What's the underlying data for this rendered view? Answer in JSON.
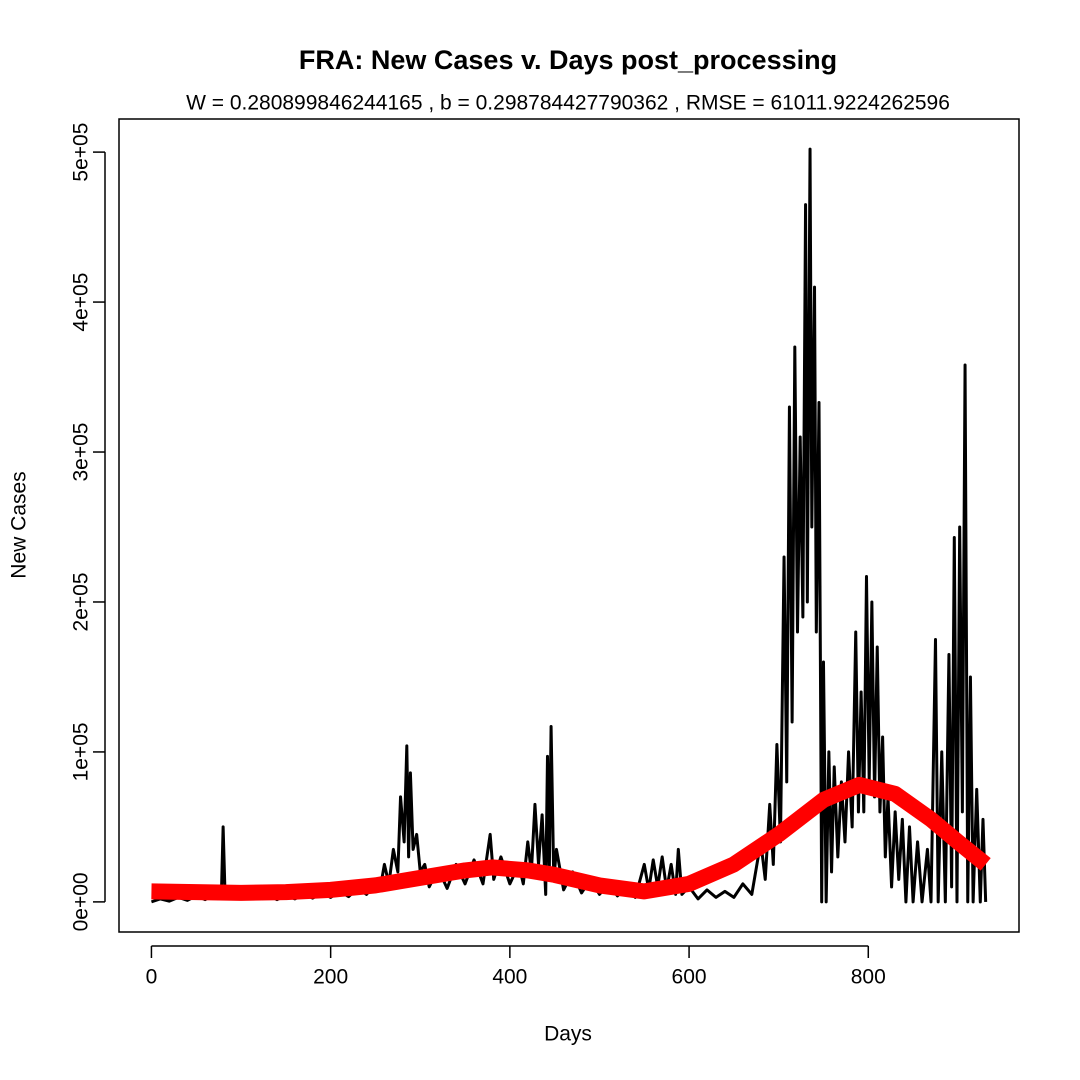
{
  "chart_data": {
    "type": "line",
    "title": "FRA: New Cases v. Days post_processing",
    "subtitle": "W = 0.280899846244165 , b = 0.298784427790362 , RMSE = 61011.9224262596",
    "x_label": "Days",
    "y_label": "New Cases",
    "xlim": [
      -36.2,
      968.2
    ],
    "ylim": [
      -20080,
      522080
    ],
    "xticks": [
      0,
      200,
      400,
      600,
      800
    ],
    "yticks": [
      {
        "value": 0,
        "label": "0e+00"
      },
      {
        "value": 100000,
        "label": "1e+05"
      },
      {
        "value": 200000,
        "label": "2e+05"
      },
      {
        "value": 300000,
        "label": "3e+05"
      },
      {
        "value": 400000,
        "label": "4e+05"
      },
      {
        "value": 500000,
        "label": "5e+05"
      }
    ],
    "series": [
      {
        "color": "#000000",
        "width": 3,
        "x": [
          0,
          10,
          20,
          30,
          40,
          50,
          60,
          70,
          78,
          80,
          82,
          90,
          100,
          110,
          120,
          130,
          140,
          150,
          160,
          170,
          180,
          190,
          200,
          210,
          220,
          230,
          240,
          250,
          255,
          260,
          265,
          270,
          275,
          278,
          282,
          285,
          287,
          289,
          292,
          296,
          300,
          305,
          310,
          320,
          330,
          340,
          350,
          360,
          370,
          378,
          382,
          390,
          400,
          410,
          415,
          420,
          424,
          428,
          432,
          436,
          440,
          442,
          444,
          446,
          449,
          452,
          460,
          470,
          480,
          490,
          500,
          510,
          520,
          530,
          540,
          550,
          555,
          560,
          565,
          570,
          575,
          580,
          585,
          588,
          592,
          600,
          610,
          620,
          630,
          640,
          650,
          660,
          670,
          680,
          685,
          690,
          694,
          698,
          702,
          706,
          709,
          712,
          715,
          718,
          721,
          724,
          727,
          730,
          732,
          735,
          737,
          740,
          742,
          745,
          748,
          750,
          753,
          756,
          759,
          762,
          766,
          770,
          774,
          778,
          782,
          786,
          789,
          792,
          795,
          798,
          801,
          804,
          807,
          810,
          813,
          816,
          819,
          822,
          826,
          830,
          834,
          838,
          842,
          846,
          850,
          855,
          860,
          866,
          870,
          875,
          878,
          882,
          886,
          890,
          893,
          896,
          899,
          902,
          905,
          908,
          911,
          914,
          917,
          921,
          925,
          928,
          931
        ],
        "values": [
          0,
          2000,
          500,
          3000,
          1000,
          4000,
          1500,
          5000,
          3000,
          50000,
          8000,
          6000,
          4000,
          6500,
          2000,
          5000,
          1500,
          4500,
          2000,
          5000,
          2500,
          6000,
          3000,
          7000,
          3500,
          9000,
          5000,
          12000,
          8000,
          25000,
          12000,
          35000,
          20000,
          70000,
          40000,
          104000,
          30000,
          86000,
          35000,
          45000,
          20000,
          25000,
          10000,
          22000,
          9000,
          25000,
          12000,
          28000,
          12000,
          45000,
          15000,
          30000,
          12000,
          25000,
          12000,
          40000,
          20000,
          65000,
          25000,
          58000,
          5000,
          97000,
          20000,
          117000,
          15000,
          35000,
          8000,
          20000,
          6000,
          15000,
          5000,
          12000,
          4000,
          10000,
          3000,
          25000,
          8000,
          28000,
          10000,
          30000,
          8000,
          25000,
          5000,
          35000,
          5000,
          10000,
          2000,
          8000,
          3000,
          7000,
          3000,
          12000,
          5000,
          40000,
          15000,
          65000,
          25000,
          105000,
          40000,
          230000,
          80000,
          330000,
          120000,
          370000,
          180000,
          310000,
          190000,
          465000,
          200000,
          502000,
          250000,
          410000,
          180000,
          333000,
          0,
          160000,
          0,
          100000,
          20000,
          90000,
          30000,
          80000,
          40000,
          100000,
          50000,
          180000,
          60000,
          140000,
          60000,
          217000,
          80000,
          200000,
          70000,
          170000,
          60000,
          110000,
          30000,
          70000,
          10000,
          60000,
          15000,
          55000,
          0,
          50000,
          0,
          40000,
          0,
          35000,
          0,
          175000,
          0,
          100000,
          0,
          165000,
          10000,
          243000,
          0,
          250000,
          60000,
          358000,
          0,
          150000,
          0,
          75000,
          0,
          55000,
          0
        ]
      },
      {
        "color": "#ff0000",
        "width": 16,
        "x": [
          0,
          50,
          100,
          150,
          200,
          250,
          300,
          350,
          380,
          420,
          450,
          500,
          550,
          600,
          650,
          700,
          750,
          790,
          830,
          870,
          900,
          931
        ],
        "values": [
          7000,
          6500,
          6000,
          6500,
          8000,
          11000,
          16000,
          21000,
          23000,
          21000,
          18000,
          11000,
          7000,
          12000,
          25000,
          45000,
          68000,
          78000,
          72000,
          55000,
          40000,
          25000
        ]
      }
    ]
  }
}
